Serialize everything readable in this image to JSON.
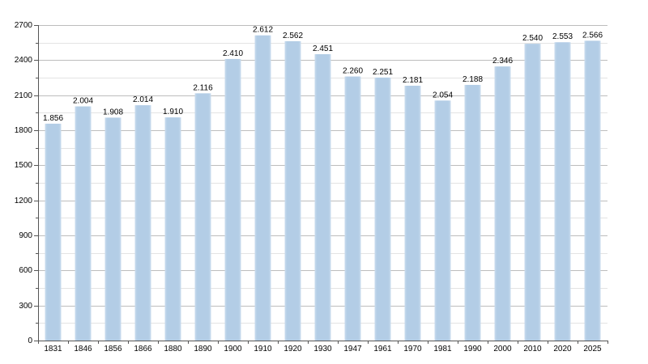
{
  "chart_data": {
    "type": "bar",
    "categories": [
      "1831",
      "1846",
      "1856",
      "1866",
      "1880",
      "1890",
      "1900",
      "1910",
      "1920",
      "1930",
      "1947",
      "1961",
      "1970",
      "1981",
      "1990",
      "2000",
      "2010",
      "2020",
      "2025"
    ],
    "values": [
      1856,
      2004,
      1908,
      2014,
      1910,
      2116,
      2410,
      2612,
      2562,
      2451,
      2260,
      2251,
      2181,
      2054,
      2188,
      2346,
      2540,
      2553,
      2566
    ],
    "data_labels": [
      "1.856",
      "2.004",
      "1.908",
      "2.014",
      "1.910",
      "2.116",
      "2.410",
      "2.612",
      "2.562",
      "2.451",
      "2.260",
      "2.251",
      "2.181",
      "2.054",
      "2.188",
      "2.346",
      "2.540",
      "2.553",
      "2.566"
    ],
    "yticks": [
      0,
      300,
      600,
      900,
      1200,
      1500,
      1800,
      2100,
      2400,
      2700
    ],
    "ylim": [
      0,
      2700
    ],
    "title": "",
    "xlabel": "",
    "ylabel": "",
    "grid": true,
    "bar_color": "#b3cde6"
  }
}
